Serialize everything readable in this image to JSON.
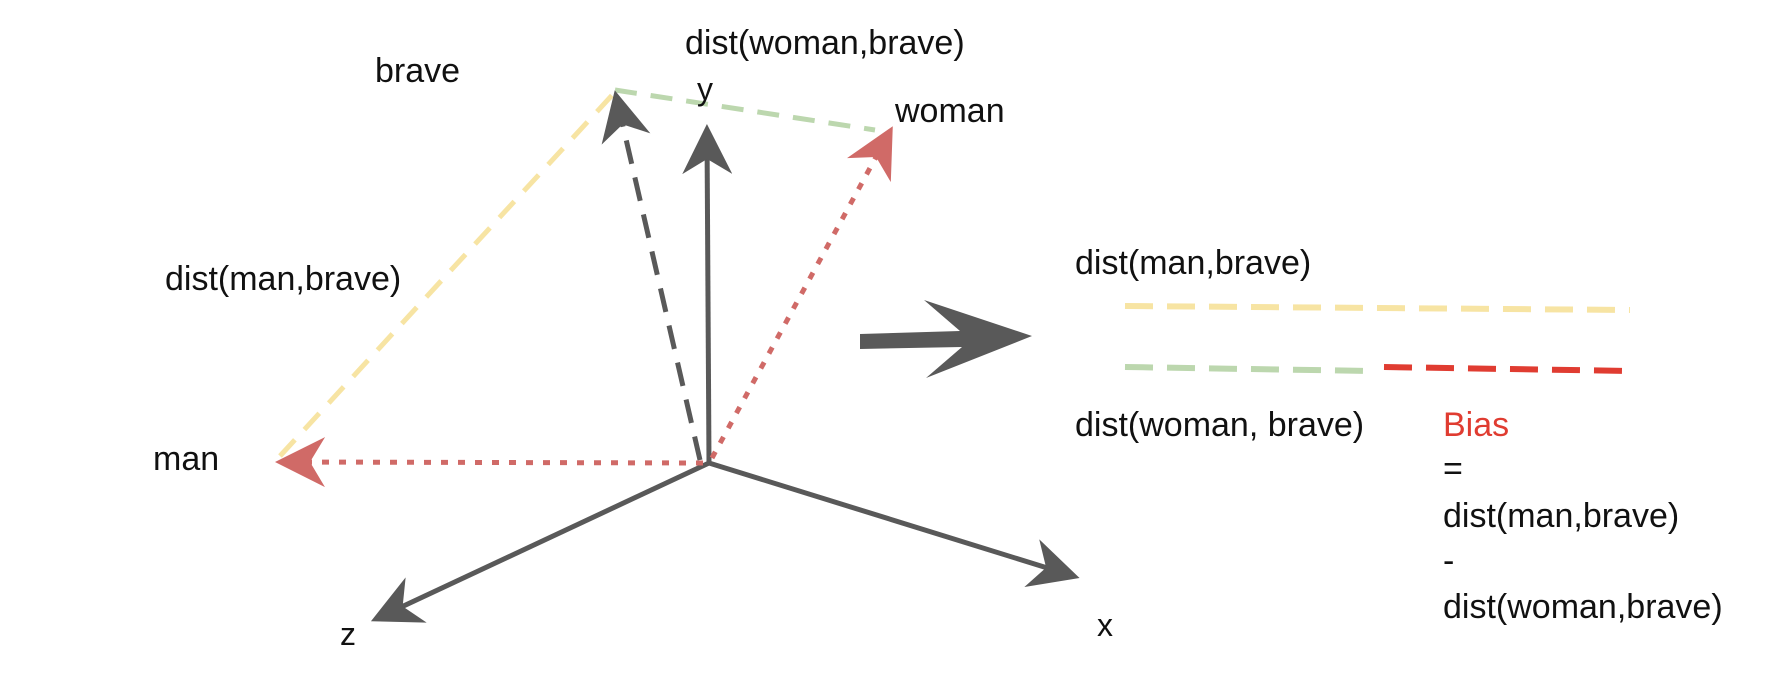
{
  "labels": {
    "brave": "brave",
    "woman": "woman",
    "man": "man",
    "axis_y": "y",
    "axis_x": "x",
    "axis_z": "z",
    "dist_woman_brave_top": "dist(woman,brave)",
    "dist_man_brave_left": "dist(man,brave)",
    "dist_man_brave_right": "dist(man,brave)",
    "dist_woman_brave_right": "dist(woman, brave)"
  },
  "formula": {
    "bias": "Bias",
    "equals": "=",
    "term1": "dist(man,brave)",
    "minus": "-",
    "term2": "dist(woman,brave)"
  },
  "colors": {
    "axis": "#595959",
    "vector_red": "#d06a67",
    "dist_yellow": "#f7e4a3",
    "dist_green": "#bcd7ae",
    "bias_red": "#e03c31"
  }
}
